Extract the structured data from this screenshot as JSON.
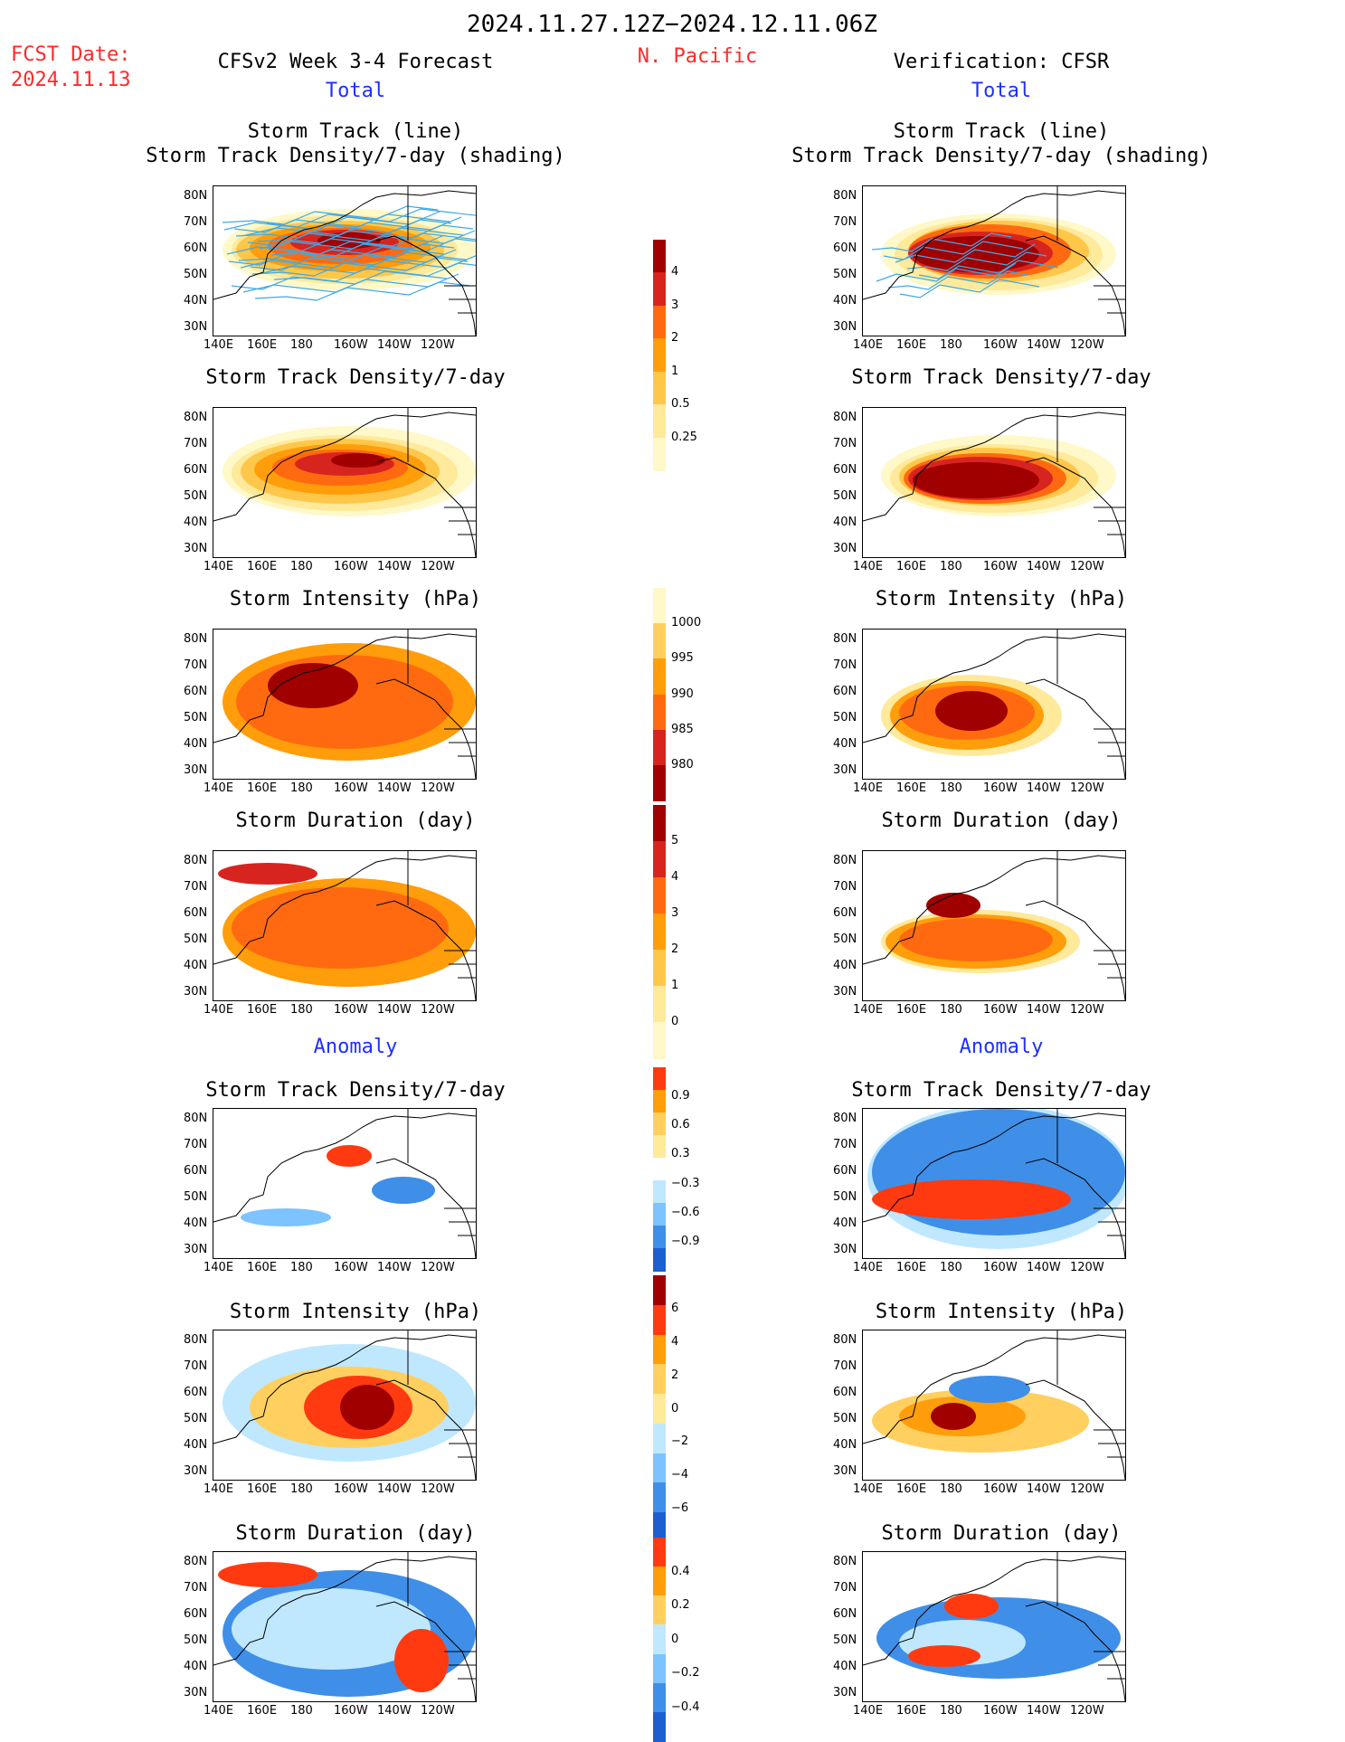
{
  "header": {
    "date_range": "2024.11.27.12Z−2024.12.11.06Z",
    "fcst_label": "FCST Date:",
    "fcst_date": "2024.11.13",
    "region": "N. Pacific",
    "left_title": "CFSv2 Week 3-4 Forecast",
    "right_title": "Verification: CFSR",
    "total_label": "Total",
    "anomaly_label": "Anomaly"
  },
  "axes": {
    "lat_labels": [
      "80N",
      "70N",
      "60N",
      "50N",
      "40N",
      "30N"
    ],
    "lon_labels": [
      "140E",
      "160E",
      "180",
      "160W",
      "140W",
      "120W"
    ]
  },
  "panels": [
    {
      "row": 0,
      "title1": "Storm Track (line)",
      "title2": "Storm Track Density/7-day (shading)"
    },
    {
      "row": 1,
      "title1": "Storm Track Density/7-day"
    },
    {
      "row": 2,
      "title1": "Storm Intensity (hPa)"
    },
    {
      "row": 3,
      "title1": "Storm Duration (day)"
    },
    {
      "row": 4,
      "title1": "Storm Track Density/7-day"
    },
    {
      "row": 5,
      "title1": "Storm Intensity (hPa)"
    },
    {
      "row": 6,
      "title1": "Storm Duration (day)"
    }
  ],
  "colorbars": [
    {
      "name": "density",
      "ticks": [
        "4",
        "3",
        "2",
        "1",
        "0.5",
        "0.25"
      ],
      "colors": [
        "#a00000",
        "#d8241f",
        "#ff6a10",
        "#ff9d0a",
        "#ffc74a",
        "#ffe99a",
        "#fff8c8"
      ]
    },
    {
      "name": "intensity",
      "ticks": [
        "1000",
        "995",
        "990",
        "985",
        "980"
      ],
      "colors": [
        "#fff8c8",
        "#ffd060",
        "#ff9d0a",
        "#ff6a10",
        "#d8241f",
        "#a00000"
      ]
    },
    {
      "name": "duration",
      "ticks": [
        "5",
        "4",
        "3",
        "2",
        "1",
        "0"
      ],
      "colors": [
        "#a00000",
        "#d8241f",
        "#ff6a10",
        "#ff9d0a",
        "#ffc74a",
        "#ffe99a",
        "#fff8c8"
      ]
    },
    {
      "name": "density-anom",
      "ticks": [
        "0.9",
        "0.6",
        "0.3",
        "−0.3",
        "−0.6",
        "−0.9"
      ],
      "colors": [
        "#ff3a10",
        "#ff9d0a",
        "#ffd060",
        "#ffe99a",
        "#ffffff",
        "#bfe8ff",
        "#7cc3ff",
        "#3f8fe8",
        "#1e5fd0"
      ]
    },
    {
      "name": "intensity-anom",
      "ticks": [
        "6",
        "4",
        "2",
        "0",
        "−2",
        "−4",
        "−6"
      ],
      "colors": [
        "#a00000",
        "#ff3a10",
        "#ff9d0a",
        "#ffd060",
        "#ffe99a",
        "#bfe8ff",
        "#7cc3ff",
        "#3f8fe8",
        "#1e5fd0"
      ]
    },
    {
      "name": "duration-anom",
      "ticks": [
        "0.4",
        "0.2",
        "0",
        "−0.2",
        "−0.4"
      ],
      "colors": [
        "#ff3a10",
        "#ff9d0a",
        "#ffd060",
        "#bfe8ff",
        "#7cc3ff",
        "#3f8fe8",
        "#1e5fd0"
      ]
    }
  ],
  "colors": {
    "accent_red": "#ff2a2a",
    "accent_blue": "#1f2fff",
    "track_line": "#3fa9e8"
  }
}
